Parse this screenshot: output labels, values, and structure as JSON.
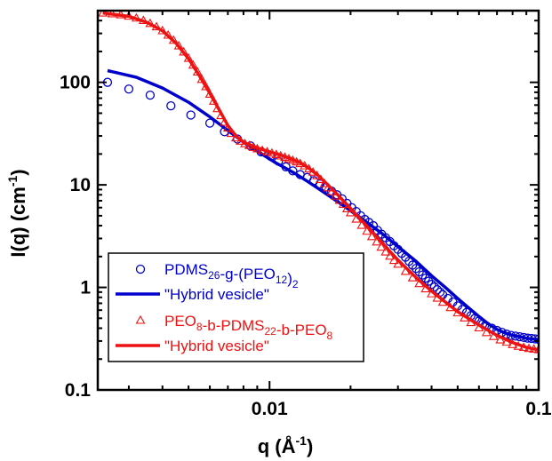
{
  "chart_data": {
    "type": "scatter",
    "xlabel": {
      "main": "q (Å",
      "sup": "-1",
      "close": ")"
    },
    "ylabel": {
      "main": "I(q) (cm",
      "sup": "-1",
      "close": ")"
    },
    "xscale": "log",
    "yscale": "log",
    "xlim": [
      0.0023,
      0.1
    ],
    "ylim": [
      0.1,
      500
    ],
    "x_tick_labels": [
      "0.01",
      "0.1"
    ],
    "y_tick_labels": [
      "100",
      "10",
      "1",
      "0.1"
    ],
    "grid": false,
    "legend_placement": "lower-left",
    "colors": {
      "blue": "#0000cc",
      "red": "#ee1111",
      "axis": "#000000"
    },
    "legend": [
      {
        "parts": [
          [
            "PDMS",
            ""
          ],
          [
            "26",
            "sub"
          ],
          [
            "-g-(PEO",
            ""
          ],
          [
            "12",
            "sub"
          ],
          [
            ")",
            ""
          ],
          [
            "2",
            "sub"
          ]
        ]
      },
      {
        "parts": [
          [
            "\"Hybrid vesicle\"",
            ""
          ]
        ]
      },
      {
        "parts": [
          [
            "PEO",
            ""
          ],
          [
            "8",
            "sub"
          ],
          [
            "-b-PDMS",
            ""
          ],
          [
            "22",
            "sub"
          ],
          [
            "-b-PEO",
            ""
          ],
          [
            "8",
            "sub"
          ]
        ]
      },
      {
        "parts": [
          [
            "\"Hybrid vesicle\"",
            ""
          ]
        ]
      }
    ],
    "series": [
      {
        "name": "PDMS26-g-(PEO12)2",
        "style": "circle",
        "color": "#0000cc",
        "points": [
          [
            0.0025,
            100
          ],
          [
            0.003,
            86
          ],
          [
            0.0036,
            75
          ],
          [
            0.0043,
            59
          ],
          [
            0.0051,
            48
          ],
          [
            0.006,
            40
          ],
          [
            0.0068,
            33
          ],
          [
            0.0076,
            28
          ],
          [
            0.0085,
            24
          ],
          [
            0.0093,
            21
          ],
          [
            0.0101,
            19
          ],
          [
            0.0108,
            17
          ],
          [
            0.0115,
            15
          ],
          [
            0.0122,
            13.7
          ],
          [
            0.013,
            12.6
          ],
          [
            0.0138,
            11.8
          ],
          [
            0.0146,
            11
          ],
          [
            0.0154,
            10.2
          ],
          [
            0.0162,
            9.5
          ],
          [
            0.017,
            8.7
          ],
          [
            0.0178,
            8
          ],
          [
            0.0186,
            7.3
          ],
          [
            0.0194,
            6.6
          ],
          [
            0.0202,
            6
          ],
          [
            0.021,
            5.5
          ],
          [
            0.0218,
            5
          ],
          [
            0.0226,
            4.6
          ],
          [
            0.0234,
            4.3
          ],
          [
            0.0243,
            4
          ],
          [
            0.0252,
            3.6
          ],
          [
            0.0261,
            3.3
          ],
          [
            0.027,
            3.05
          ],
          [
            0.028,
            2.8
          ],
          [
            0.029,
            2.55
          ],
          [
            0.03,
            2.35
          ],
          [
            0.031,
            2.15
          ],
          [
            0.032,
            1.97
          ],
          [
            0.033,
            1.8
          ],
          [
            0.034,
            1.65
          ],
          [
            0.035,
            1.53
          ],
          [
            0.036,
            1.42
          ],
          [
            0.037,
            1.32
          ],
          [
            0.038,
            1.23
          ],
          [
            0.039,
            1.15
          ],
          [
            0.04,
            1.07
          ],
          [
            0.041,
            1.01
          ],
          [
            0.042,
            0.95
          ],
          [
            0.043,
            0.9
          ],
          [
            0.044,
            0.85
          ],
          [
            0.046,
            0.78
          ],
          [
            0.048,
            0.72
          ],
          [
            0.05,
            0.66
          ],
          [
            0.052,
            0.61
          ],
          [
            0.054,
            0.57
          ],
          [
            0.056,
            0.53
          ],
          [
            0.058,
            0.5
          ],
          [
            0.06,
            0.47
          ],
          [
            0.062,
            0.44
          ],
          [
            0.064,
            0.42
          ],
          [
            0.067,
            0.4
          ],
          [
            0.07,
            0.38
          ],
          [
            0.073,
            0.365
          ],
          [
            0.076,
            0.35
          ],
          [
            0.079,
            0.34
          ],
          [
            0.082,
            0.335
          ],
          [
            0.085,
            0.33
          ],
          [
            0.088,
            0.325
          ],
          [
            0.091,
            0.32
          ],
          [
            0.094,
            0.318
          ],
          [
            0.097,
            0.315
          ],
          [
            0.1,
            0.312
          ]
        ]
      },
      {
        "name": "\"Hybrid vesicle\"",
        "style": "line",
        "color": "#0000cc",
        "points": [
          [
            0.0025,
            130
          ],
          [
            0.0032,
            112
          ],
          [
            0.004,
            88
          ],
          [
            0.005,
            64
          ],
          [
            0.006,
            46
          ],
          [
            0.007,
            34
          ],
          [
            0.0082,
            25
          ],
          [
            0.0095,
            19.5
          ],
          [
            0.0105,
            16.5
          ],
          [
            0.0115,
            14.5
          ],
          [
            0.0125,
            12.8
          ],
          [
            0.014,
            10.6
          ],
          [
            0.016,
            8.4
          ],
          [
            0.018,
            6.8
          ],
          [
            0.02,
            5.6
          ],
          [
            0.023,
            4.3
          ],
          [
            0.026,
            3.4
          ],
          [
            0.03,
            2.5
          ],
          [
            0.035,
            1.8
          ],
          [
            0.04,
            1.3
          ],
          [
            0.045,
            1
          ],
          [
            0.05,
            0.78
          ],
          [
            0.055,
            0.63
          ],
          [
            0.06,
            0.52
          ],
          [
            0.065,
            0.44
          ],
          [
            0.07,
            0.39
          ],
          [
            0.075,
            0.36
          ],
          [
            0.08,
            0.34
          ],
          [
            0.085,
            0.33
          ],
          [
            0.09,
            0.32
          ],
          [
            0.1,
            0.31
          ]
        ]
      },
      {
        "name": "PEO8-b-PDMS22-b-PEO8",
        "style": "triangle",
        "color": "#ee1111",
        "points": [
          [
            0.0024,
            470
          ],
          [
            0.0026,
            462
          ],
          [
            0.0028,
            452
          ],
          [
            0.003,
            438
          ],
          [
            0.0032,
            420
          ],
          [
            0.0034,
            398
          ],
          [
            0.0036,
            372
          ],
          [
            0.0038,
            345
          ],
          [
            0.004,
            316
          ],
          [
            0.0042,
            286
          ],
          [
            0.0044,
            255
          ],
          [
            0.0046,
            225
          ],
          [
            0.0048,
            196
          ],
          [
            0.005,
            170
          ],
          [
            0.0052,
            146
          ],
          [
            0.0054,
            125
          ],
          [
            0.0056,
            106
          ],
          [
            0.0058,
            90
          ],
          [
            0.006,
            76
          ],
          [
            0.0062,
            65
          ],
          [
            0.0064,
            55
          ],
          [
            0.0066,
            47
          ],
          [
            0.0068,
            40.5
          ],
          [
            0.007,
            35.5
          ],
          [
            0.0072,
            31.5
          ],
          [
            0.0075,
            28.5
          ],
          [
            0.0078,
            26.5
          ],
          [
            0.0081,
            25
          ],
          [
            0.0084,
            24
          ],
          [
            0.0087,
            23
          ],
          [
            0.009,
            22.3
          ],
          [
            0.0094,
            21.5
          ],
          [
            0.0098,
            20.8
          ],
          [
            0.0102,
            20.2
          ],
          [
            0.0106,
            19.6
          ],
          [
            0.011,
            19
          ],
          [
            0.0114,
            18.4
          ],
          [
            0.0118,
            17.8
          ],
          [
            0.0122,
            17.2
          ],
          [
            0.0126,
            16.6
          ],
          [
            0.013,
            16
          ],
          [
            0.0135,
            15.2
          ],
          [
            0.014,
            14.2
          ],
          [
            0.0145,
            13.2
          ],
          [
            0.015,
            12.2
          ],
          [
            0.0155,
            11.2
          ],
          [
            0.016,
            10.2
          ],
          [
            0.0165,
            9.3
          ],
          [
            0.017,
            8.5
          ],
          [
            0.0176,
            7.7
          ],
          [
            0.0182,
            7
          ],
          [
            0.0188,
            6.4
          ],
          [
            0.0194,
            5.8
          ],
          [
            0.02,
            5.3
          ],
          [
            0.021,
            4.6
          ],
          [
            0.022,
            4
          ],
          [
            0.023,
            3.5
          ],
          [
            0.024,
            3.1
          ],
          [
            0.025,
            2.75
          ],
          [
            0.026,
            2.45
          ],
          [
            0.027,
            2.2
          ],
          [
            0.028,
            2
          ],
          [
            0.029,
            1.82
          ],
          [
            0.03,
            1.67
          ],
          [
            0.032,
            1.42
          ],
          [
            0.034,
            1.23
          ],
          [
            0.036,
            1.08
          ],
          [
            0.038,
            0.96
          ],
          [
            0.04,
            0.86
          ],
          [
            0.042,
            0.78
          ],
          [
            0.044,
            0.71
          ],
          [
            0.047,
            0.63
          ],
          [
            0.05,
            0.56
          ],
          [
            0.053,
            0.5
          ],
          [
            0.056,
            0.45
          ],
          [
            0.06,
            0.4
          ],
          [
            0.064,
            0.36
          ],
          [
            0.068,
            0.33
          ],
          [
            0.072,
            0.305
          ],
          [
            0.076,
            0.29
          ],
          [
            0.08,
            0.275
          ],
          [
            0.084,
            0.265
          ],
          [
            0.088,
            0.258
          ],
          [
            0.092,
            0.252
          ],
          [
            0.096,
            0.248
          ],
          [
            0.1,
            0.245
          ]
        ]
      },
      {
        "name": "\"Hybrid vesicle\"",
        "style": "line",
        "color": "#ee1111",
        "points": [
          [
            0.0024,
            475
          ],
          [
            0.003,
            440
          ],
          [
            0.0035,
            385
          ],
          [
            0.004,
            318
          ],
          [
            0.0045,
            240
          ],
          [
            0.005,
            170
          ],
          [
            0.0055,
            115
          ],
          [
            0.006,
            78
          ],
          [
            0.0065,
            54
          ],
          [
            0.007,
            38
          ],
          [
            0.0075,
            30
          ],
          [
            0.008,
            26
          ],
          [
            0.009,
            23
          ],
          [
            0.01,
            21
          ],
          [
            0.011,
            19.5
          ],
          [
            0.012,
            18
          ],
          [
            0.013,
            16.5
          ],
          [
            0.014,
            14.5
          ],
          [
            0.015,
            12.6
          ],
          [
            0.016,
            10.8
          ],
          [
            0.017,
            9.2
          ],
          [
            0.018,
            7.9
          ],
          [
            0.019,
            6.8
          ],
          [
            0.02,
            5.9
          ],
          [
            0.022,
            4.5
          ],
          [
            0.024,
            3.5
          ],
          [
            0.026,
            2.8
          ],
          [
            0.028,
            2.25
          ],
          [
            0.03,
            1.85
          ],
          [
            0.035,
            1.25
          ],
          [
            0.04,
            0.92
          ],
          [
            0.045,
            0.72
          ],
          [
            0.05,
            0.58
          ],
          [
            0.06,
            0.43
          ],
          [
            0.07,
            0.34
          ],
          [
            0.08,
            0.29
          ],
          [
            0.09,
            0.26
          ],
          [
            0.1,
            0.245
          ]
        ]
      }
    ]
  }
}
